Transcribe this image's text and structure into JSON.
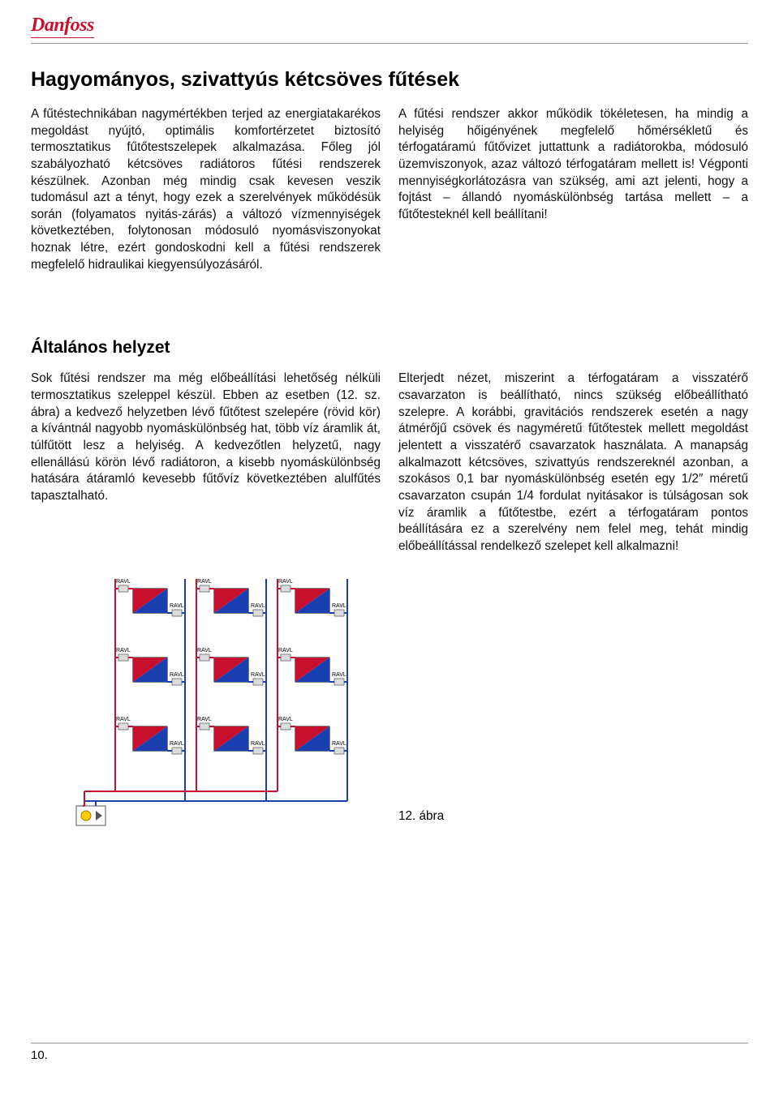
{
  "brand": "Danfoss",
  "section1": {
    "title": "Hagyományos, szivattyús kétcsöves fűtések",
    "left": "A fűtéstechnikában nagymértékben terjed az energiatakarékos megoldást nyújtó, optimális komfortérzetet biztosító termosztatikus fűtőtestszelepek alkalmazása. Főleg jól szabályozható kétcsöves radiátoros fűtési rendszerek készülnek. Azonban még mindig csak kevesen veszik tudomásul azt a tényt, hogy ezek a szerelvények működésük során (folyamatos nyitás-zárás) a változó vízmennyiségek következtében, folytonosan módosuló nyomásviszonyokat hoznak létre, ezért gondoskodni kell a fűtési rendszerek megfelelő hidraulikai kiegyensúlyozásáról.",
    "right": "A fűtési rendszer akkor működik tökéletesen, ha mindig a helyiség hőigényének megfelelő hőmérsékletű és térfogatáramú fűtővizet juttattunk a radiátorokba, módosuló üzemviszonyok, azaz változó térfogatáram mellett is! Végponti mennyiségkorlátozásra van szükség, ami azt jelenti, hogy a fojtást – állandó nyomáskülönbség tartása mellett – a fűtőtesteknél kell beállítani!"
  },
  "section2": {
    "title": "Általános helyzet",
    "left": "Sok fűtési rendszer ma még előbeállítási lehetőség nélküli termosztatikus szeleppel készül. Ebben az esetben (12. sz. ábra) a kedvező helyzetben lévő fűtőtest szelepére (rövid kör) a kívántnál nagyobb nyomáskülönbség hat, több víz áramlik át, túlfűtött lesz a helyiség. A kedvezőtlen helyzetű, nagy ellenállású körön lévő radiátoron, a kisebb nyomáskülönbség hatására átáramló kevesebb fűtővíz következtében alulfűtés tapasztalható.",
    "right": "Elterjedt nézet, miszerint a térfogatáram a visszatérő csavarzaton is beállítható, nincs szükség előbeállítható szelepre. A korábbi, gravitációs rendszerek esetén a nagy átmérőjű csövek és nagyméretű fűtőtestek mellett megoldást jelentett a visszatérő csavarzatok használata. A manapság alkalmazott kétcsöves, szivattyús rendszereknél azonban, a szokásos 0,1 bar nyomáskülönbség esetén egy 1/2″ méretű csavarzaton csupán 1/4 fordulat nyitásakor is túlságosan sok víz áramlik a fűtőtestbe, ezért a térfogatáram pontos beállítására ez a szerelvény nem felel meg, tehát mindig előbeállítással rendelkező szelepet kell alkalmazni!"
  },
  "figure_caption": "12. ábra",
  "page_number": "10.",
  "diagram": {
    "pipe_supply_color": "#c8102e",
    "pipe_return_color": "#1a3fb0",
    "radiator_red": "#c8102e",
    "radiator_blue": "#1a3fb0",
    "valve_label": "RAVL",
    "valve_fill": "#dcdcdc",
    "valve_stroke": "#666666",
    "pipe_width": 2,
    "label_font": "7px Arial",
    "pump_fill": "#ffcc00",
    "rows": 3,
    "cols": 3
  }
}
